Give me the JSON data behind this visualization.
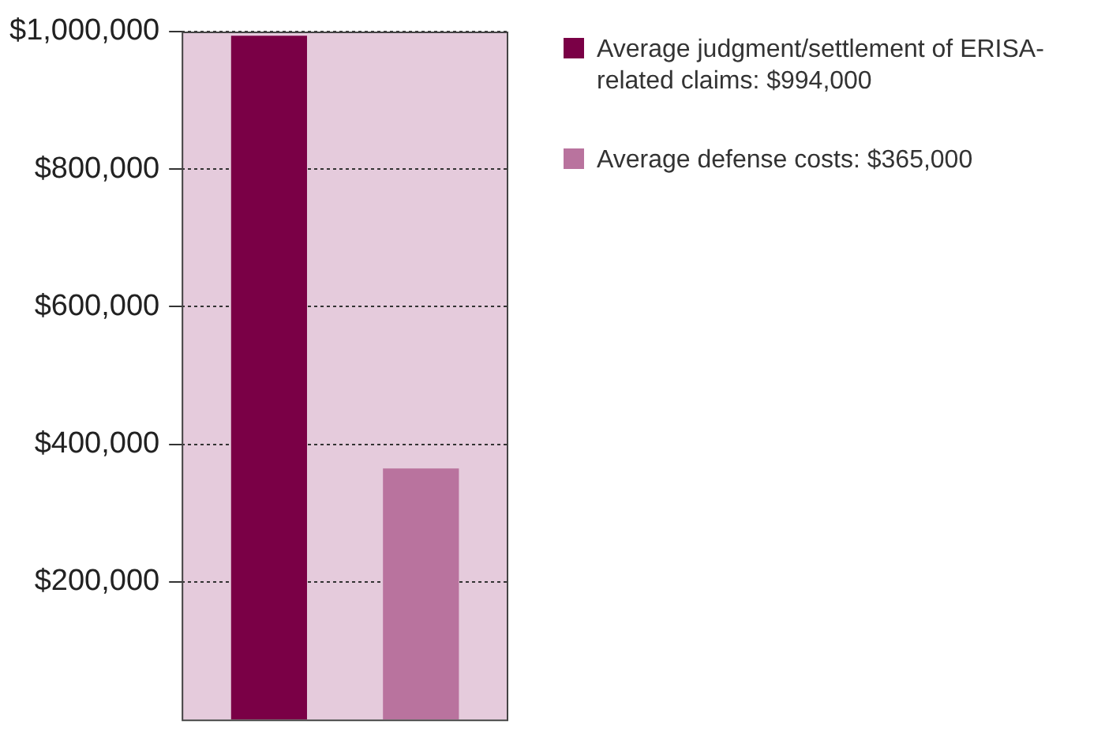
{
  "chart_data": {
    "type": "bar",
    "categories": [
      null
    ],
    "series": [
      {
        "name": "Average judgment/settlement of ERISA-related claims: $994,000",
        "color": "#7a0046",
        "values": [
          994000
        ]
      },
      {
        "name": "Average defense costs: $365,000",
        "color": "#b9739e",
        "values": [
          365000
        ]
      }
    ],
    "ylim": [
      0,
      1000000
    ],
    "yticks": [
      {
        "value": 200000,
        "label": "$200,000"
      },
      {
        "value": 400000,
        "label": "$400,000"
      },
      {
        "value": 600000,
        "label": "$600,000"
      },
      {
        "value": 800000,
        "label": "$800,000"
      },
      {
        "value": 1000000,
        "label": "$1,000,000"
      }
    ],
    "grid": "y",
    "legend": "right",
    "tick_labels": "y"
  }
}
